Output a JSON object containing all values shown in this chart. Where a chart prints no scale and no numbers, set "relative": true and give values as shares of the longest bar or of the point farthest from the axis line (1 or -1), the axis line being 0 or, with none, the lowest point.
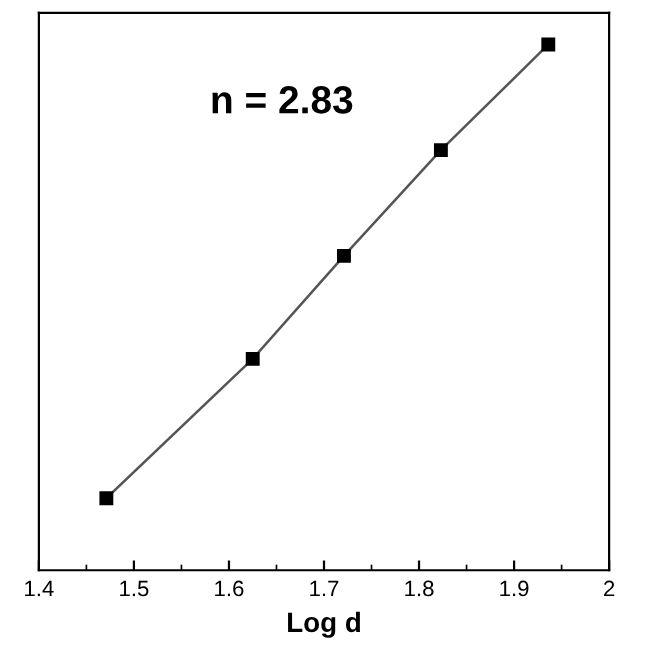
{
  "chart_data": {
    "type": "line",
    "relative": true,
    "xlabel": "Log d",
    "x": [
      1.471,
      1.625,
      1.721,
      1.823,
      1.936
    ],
    "series": [
      {
        "color": "#000000",
        "values": [
          0.137,
          0.402,
          0.598,
          0.799,
          1.0
        ]
      }
    ],
    "xlim": [
      1.4,
      2.0
    ],
    "xticks": [
      1.4,
      1.5,
      1.6,
      1.7,
      1.8,
      1.9,
      {
        "value": 2.0,
        "label": "2"
      }
    ],
    "marker": "square",
    "line_style": "solid",
    "grid": false,
    "legend": false,
    "annotations": [
      "n = 2.83"
    ]
  }
}
